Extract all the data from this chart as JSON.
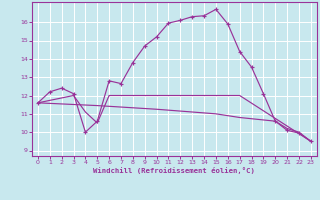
{
  "xlabel": "Windchill (Refroidissement éolien,°C)",
  "bg_color": "#c8e8ee",
  "line_color": "#993399",
  "grid_color": "#ffffff",
  "xlim": [
    -0.5,
    23.5
  ],
  "ylim": [
    8.7,
    17.1
  ],
  "xticks": [
    0,
    1,
    2,
    3,
    4,
    5,
    6,
    7,
    8,
    9,
    10,
    11,
    12,
    13,
    14,
    15,
    16,
    17,
    18,
    19,
    20,
    21,
    22,
    23
  ],
  "yticks": [
    9,
    10,
    11,
    12,
    13,
    14,
    15,
    16
  ],
  "line1_x": [
    0,
    1,
    2,
    3,
    4,
    5,
    6,
    7,
    8,
    9,
    10,
    11,
    12,
    13,
    14,
    15,
    16,
    17,
    18,
    19,
    20,
    21,
    22,
    23
  ],
  "line1_y": [
    11.6,
    12.2,
    12.4,
    12.1,
    10.0,
    10.6,
    12.8,
    12.65,
    13.8,
    14.7,
    15.2,
    15.95,
    16.1,
    16.3,
    16.35,
    16.7,
    15.9,
    14.4,
    13.55,
    12.1,
    10.6,
    10.1,
    9.95,
    9.5
  ],
  "line2_x": [
    0,
    3,
    4,
    5,
    6,
    10,
    17,
    23
  ],
  "line2_y": [
    11.6,
    12.0,
    11.1,
    10.5,
    12.0,
    12.0,
    12.0,
    9.5
  ],
  "line3_x": [
    0,
    5,
    10,
    15,
    17,
    20,
    21,
    22,
    23
  ],
  "line3_y": [
    11.6,
    11.45,
    11.25,
    11.0,
    10.8,
    10.6,
    10.2,
    10.0,
    9.5
  ]
}
